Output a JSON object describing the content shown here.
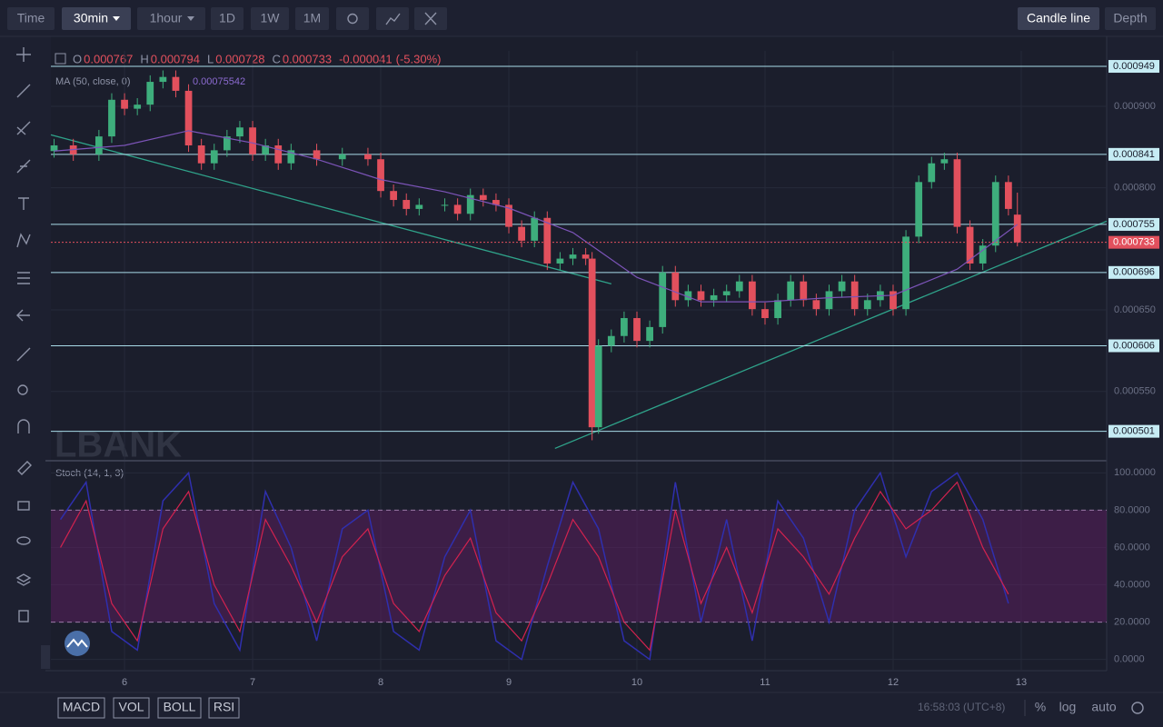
{
  "toolbar": {
    "intervals": [
      "Time",
      "30min",
      "1hour",
      "1D",
      "1W",
      "1M"
    ],
    "views": [
      "Candle line",
      "Depth"
    ]
  },
  "legend": {
    "ohlc": [
      {
        "key": "O",
        "value": "0.000767"
      },
      {
        "key": "H",
        "value": "0.000794"
      },
      {
        "key": "L",
        "value": "0.000728"
      },
      {
        "key": "C",
        "value": "0.000733"
      }
    ],
    "change": "-0.000041",
    "change_pct": "(-5.30%)",
    "ma_label": "MA (50, close, 0)",
    "ma_value": "0.00075542"
  },
  "watermark": "LBANK",
  "chart_data": [
    {
      "type": "candlestick",
      "x": [
        5.45,
        5.6,
        5.8,
        5.9,
        6.0,
        6.1,
        6.2,
        6.3,
        6.4,
        6.5,
        6.6,
        6.7,
        6.8,
        6.9,
        7.0,
        7.1,
        7.2,
        7.3,
        7.5,
        7.7,
        7.9,
        8.0,
        8.1,
        8.2,
        8.3,
        8.5,
        8.6,
        8.7,
        8.8,
        8.9,
        9.0,
        9.1,
        9.2,
        9.3,
        9.4,
        9.5,
        9.6,
        9.65,
        9.7,
        9.8,
        9.9,
        10.0,
        10.1,
        10.2,
        10.3,
        10.4,
        10.5,
        10.6,
        10.7,
        10.8,
        10.9,
        11.0,
        11.1,
        11.2,
        11.3,
        11.4,
        11.5,
        11.6,
        11.7,
        11.8,
        11.9,
        12.0,
        12.1,
        12.2,
        12.3,
        12.4,
        12.5,
        12.6,
        12.7,
        12.8,
        12.9,
        12.97
      ],
      "open": [
        0.000845,
        0.000852,
        0.000841,
        0.000863,
        0.000908,
        0.000897,
        0.000902,
        0.00093,
        0.000936,
        0.000919,
        0.000852,
        0.00083,
        0.000846,
        0.000863,
        0.000874,
        0.000841,
        0.000852,
        0.00083,
        0.000846,
        0.000835,
        0.000841,
        0.000835,
        0.000796,
        0.000785,
        0.000774,
        0.000779,
        0.000779,
        0.000768,
        0.000791,
        0.000785,
        0.000779,
        0.000752,
        0.000735,
        0.000763,
        0.000707,
        0.000713,
        0.000718,
        0.000713,
        0.000506,
        0.000606,
        0.000618,
        0.00064,
        0.000612,
        0.000629,
        0.000696,
        0.000662,
        0.000673,
        0.000662,
        0.000668,
        0.000673,
        0.000685,
        0.000651,
        0.00064,
        0.000662,
        0.000685,
        0.000662,
        0.000651,
        0.000673,
        0.000685,
        0.000651,
        0.000662,
        0.000673,
        0.000651,
        0.00074,
        0.000807,
        0.00083,
        0.000835,
        0.000752,
        0.000707,
        0.000729,
        0.000807,
        0.000767
      ],
      "high": [
        0.00086,
        0.00086,
        0.000871,
        0.000916,
        0.000916,
        0.00091,
        0.000938,
        0.000944,
        0.000944,
        0.000927,
        0.00086,
        0.000854,
        0.000871,
        0.000882,
        0.000882,
        0.00086,
        0.00086,
        0.000854,
        0.000854,
        0.000849,
        0.000849,
        0.000843,
        0.000804,
        0.000793,
        0.000787,
        0.000787,
        0.000787,
        0.000799,
        0.000799,
        0.000793,
        0.000787,
        0.00076,
        0.000771,
        0.000771,
        0.000721,
        0.000726,
        0.000726,
        0.000721,
        0.000614,
        0.000626,
        0.000648,
        0.000648,
        0.000637,
        0.000704,
        0.000704,
        0.000681,
        0.000681,
        0.000676,
        0.000681,
        0.000693,
        0.000693,
        0.000659,
        0.00067,
        0.000693,
        0.000693,
        0.00067,
        0.000681,
        0.000693,
        0.000693,
        0.00067,
        0.000681,
        0.000681,
        0.000748,
        0.000815,
        0.000838,
        0.000843,
        0.000843,
        0.00076,
        0.000737,
        0.000815,
        0.000815,
        0.000794
      ],
      "low": [
        0.000837,
        0.000833,
        0.000833,
        0.000855,
        0.000889,
        0.000889,
        0.000894,
        0.000922,
        0.000911,
        0.000844,
        0.000822,
        0.000822,
        0.000838,
        0.000855,
        0.000833,
        0.000833,
        0.000822,
        0.000822,
        0.000827,
        0.000827,
        0.000827,
        0.000788,
        0.000777,
        0.000766,
        0.000766,
        0.000771,
        0.00076,
        0.00076,
        0.000777,
        0.000771,
        0.000744,
        0.000727,
        0.000727,
        0.000699,
        0.000699,
        0.000705,
        0.000705,
        0.00049,
        0.000498,
        0.000598,
        0.00061,
        0.000604,
        0.000604,
        0.000621,
        0.000654,
        0.000654,
        0.000654,
        0.000654,
        0.00066,
        0.000665,
        0.000643,
        0.000632,
        0.000632,
        0.000654,
        0.000654,
        0.000643,
        0.000643,
        0.000665,
        0.000643,
        0.000643,
        0.000654,
        0.000643,
        0.000643,
        0.000732,
        0.000799,
        0.000822,
        0.000744,
        0.000699,
        0.000699,
        0.000721,
        0.000766,
        0.000728
      ],
      "close": [
        0.000852,
        0.000841,
        0.000863,
        0.000908,
        0.000897,
        0.000902,
        0.00093,
        0.000936,
        0.000919,
        0.000852,
        0.00083,
        0.000846,
        0.000863,
        0.000874,
        0.000841,
        0.000852,
        0.00083,
        0.000846,
        0.000835,
        0.000841,
        0.000835,
        0.000796,
        0.000785,
        0.000774,
        0.000779,
        0.000779,
        0.000768,
        0.000791,
        0.000785,
        0.000779,
        0.000752,
        0.000735,
        0.000763,
        0.000707,
        0.000713,
        0.000718,
        0.000713,
        0.000506,
        0.000606,
        0.000618,
        0.00064,
        0.000612,
        0.000629,
        0.000696,
        0.000662,
        0.000673,
        0.000662,
        0.000668,
        0.000673,
        0.000685,
        0.000651,
        0.00064,
        0.000662,
        0.000685,
        0.000662,
        0.000651,
        0.000673,
        0.000685,
        0.000651,
        0.000662,
        0.000673,
        0.000651,
        0.00074,
        0.000807,
        0.00083,
        0.000835,
        0.000752,
        0.000707,
        0.000729,
        0.000807,
        0.000774,
        0.000733
      ],
      "up_color": "#3eae7c",
      "down_color": "#e2505d",
      "ma": {
        "color": "#7c54b8",
        "x": [
          5.45,
          6.0,
          6.5,
          7.0,
          7.5,
          8.0,
          8.5,
          9.0,
          9.5,
          10.0,
          10.5,
          11.0,
          11.5,
          12.0,
          12.5,
          12.97
        ],
        "values": [
          0.000845,
          0.000852,
          0.00087,
          0.000855,
          0.000835,
          0.00081,
          0.000795,
          0.000775,
          0.000745,
          0.00069,
          0.00066,
          0.00066,
          0.000665,
          0.000668,
          0.0007,
          0.000755
        ]
      },
      "levels": [
        {
          "value": 0.000949,
          "label": "0.000949"
        },
        {
          "value": 0.000841,
          "label": "0.000841"
        },
        {
          "value": 0.000755,
          "label": "0.000755"
        },
        {
          "value": 0.000696,
          "label": "0.000696"
        },
        {
          "value": 0.000606,
          "label": "0.000606"
        },
        {
          "value": 0.000501,
          "label": "0.000501"
        }
      ],
      "level_color": "#a9dce8",
      "last_price": {
        "value": 0.000733,
        "label": "0.000733"
      },
      "trendlines": [
        {
          "x": [
            5.425,
            9.8
          ],
          "y": [
            0.000865,
            0.000682
          ]
        },
        {
          "x": [
            9.36,
            13.667
          ],
          "y": [
            0.00048,
            0.000759
          ]
        }
      ],
      "trend_color": "#2fa38a",
      "xlim": [
        5.425,
        13.667
      ],
      "ylim": [
        0.000466,
        0.000968
      ],
      "yticks": [
        {
          "value": 0.00055,
          "label": "0.000550"
        },
        {
          "value": 0.00065,
          "label": "0.000650"
        },
        {
          "value": 0.0008,
          "label": "0.000800"
        },
        {
          "value": 0.0009,
          "label": "0.000900"
        }
      ],
      "grid": true
    },
    {
      "type": "line",
      "title": "Stoch (14, 1, 3)",
      "x": [
        5.5,
        5.7,
        5.9,
        6.1,
        6.3,
        6.5,
        6.7,
        6.9,
        7.1,
        7.3,
        7.5,
        7.7,
        7.9,
        8.1,
        8.3,
        8.5,
        8.7,
        8.9,
        9.1,
        9.3,
        9.5,
        9.7,
        9.9,
        10.1,
        10.3,
        10.5,
        10.7,
        10.9,
        11.1,
        11.3,
        11.5,
        11.7,
        11.9,
        12.1,
        12.3,
        12.5,
        12.7,
        12.9
      ],
      "series": [
        {
          "color": "#2f2fae",
          "values": [
            75,
            95,
            15,
            5,
            85,
            100,
            30,
            5,
            90,
            60,
            10,
            70,
            80,
            15,
            5,
            55,
            80,
            10,
            0,
            50,
            95,
            70,
            10,
            0,
            95,
            20,
            75,
            10,
            85,
            65,
            20,
            80,
            100,
            55,
            90,
            100,
            75,
            30
          ]
        },
        {
          "color": "#d2224f",
          "values": [
            60,
            85,
            30,
            10,
            70,
            90,
            40,
            15,
            75,
            50,
            20,
            55,
            70,
            30,
            15,
            45,
            65,
            25,
            10,
            40,
            75,
            55,
            20,
            5,
            80,
            30,
            60,
            25,
            70,
            55,
            35,
            65,
            90,
            70,
            80,
            95,
            60,
            35
          ]
        }
      ],
      "band": [
        20,
        80
      ],
      "band_color": "#5a1f5e",
      "xlim": [
        5.425,
        13.667
      ],
      "ylim": [
        -6,
        106
      ],
      "yticks": [
        {
          "value": 0,
          "label": "0.0000"
        },
        {
          "value": 20,
          "label": "20.0000"
        },
        {
          "value": 40,
          "label": "40.0000"
        },
        {
          "value": 60,
          "label": "60.0000"
        },
        {
          "value": 80,
          "label": "80.0000"
        },
        {
          "value": 100,
          "label": "100.0000"
        }
      ],
      "xticks": [
        6,
        7,
        8,
        9,
        10,
        11,
        12,
        13
      ],
      "grid": true
    }
  ],
  "footer": {
    "indicators": [
      "MACD",
      "VOL",
      "BOLL",
      "RSI"
    ],
    "time": "16:58:03 (UTC+8)",
    "options": [
      "%",
      "log",
      "auto"
    ]
  }
}
